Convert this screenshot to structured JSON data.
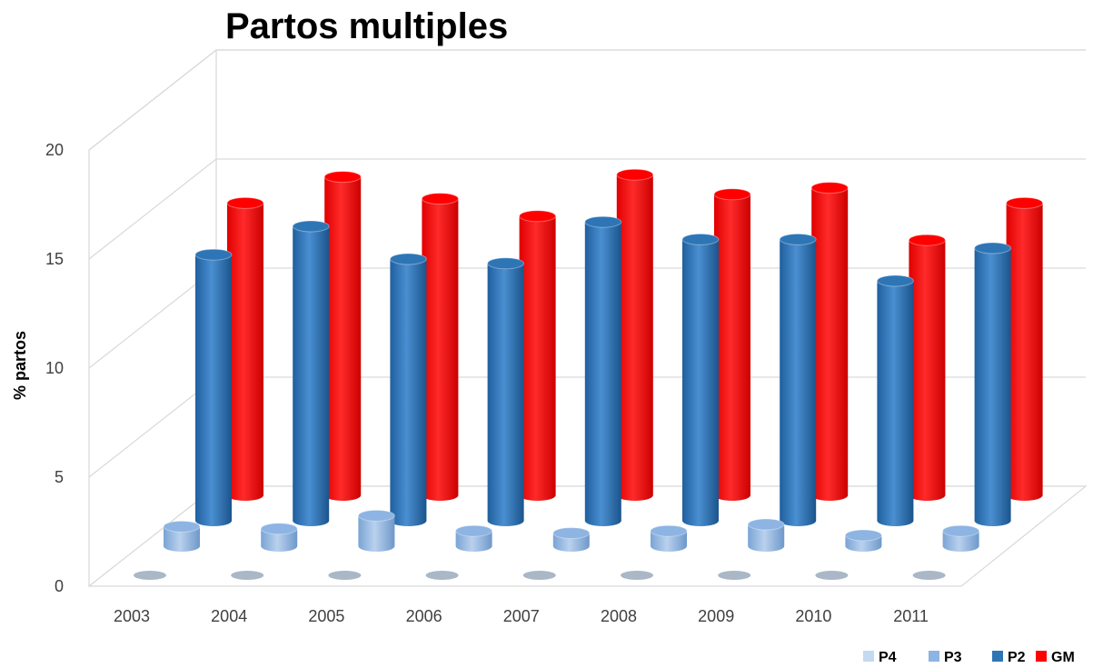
{
  "chart_data": {
    "type": "bar",
    "title": "Partos multiples",
    "ylabel": "% partos",
    "xlabel": "",
    "ylim": [
      0,
      20
    ],
    "yticks": [
      "0",
      "5",
      "10",
      "15",
      "20"
    ],
    "categories": [
      "2003",
      "2004",
      "2005",
      "2006",
      "2007",
      "2008",
      "2009",
      "2010",
      "2011"
    ],
    "series": [
      {
        "name": "P4",
        "color": "#c5d9f1",
        "values": [
          0.1,
          0.1,
          0.1,
          0.1,
          0.1,
          0.1,
          0.1,
          0.1,
          0.1
        ]
      },
      {
        "name": "P3",
        "color": "#8db4e2",
        "values": [
          0.9,
          0.8,
          1.4,
          0.7,
          0.6,
          0.7,
          1.0,
          0.5,
          0.7
        ]
      },
      {
        "name": "P2",
        "color": "#2e75b6",
        "values": [
          12.2,
          13.5,
          12.0,
          11.8,
          13.7,
          12.9,
          12.9,
          11.0,
          12.5
        ]
      },
      {
        "name": "GM",
        "color": "#ff0000",
        "values": [
          13.4,
          14.6,
          13.6,
          12.8,
          14.7,
          13.8,
          14.1,
          11.7,
          13.4
        ]
      }
    ],
    "legend": "bottom-right",
    "grid": true,
    "depth_3d": true
  }
}
